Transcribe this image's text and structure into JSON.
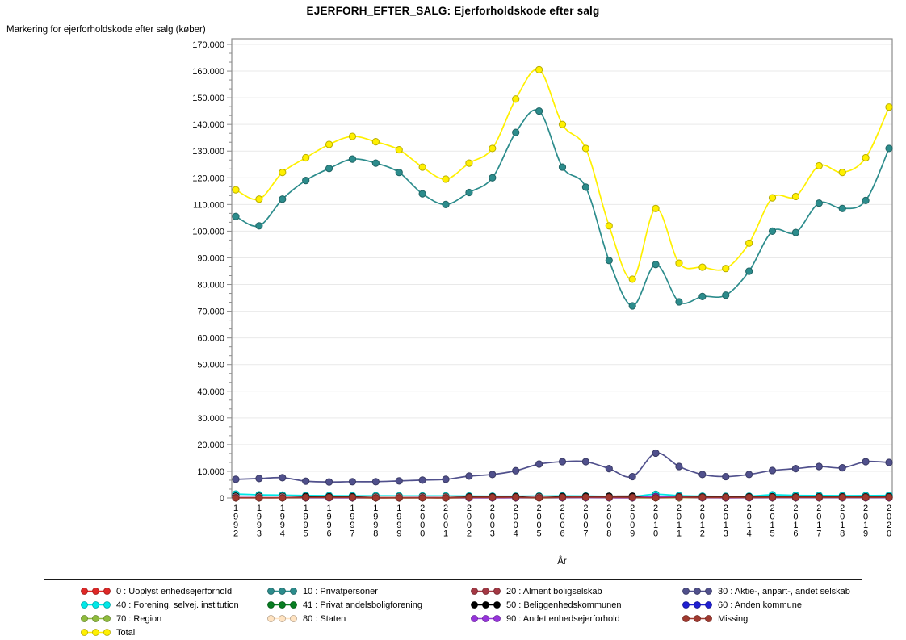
{
  "title": "EJERFORH_EFTER_SALG: Ejerforholdskode efter salg",
  "y_axis_label": "Markering for ejerforholdskode efter salg (køber)",
  "x_axis_label": "År",
  "chart_data": {
    "type": "line",
    "x": [
      1992,
      1993,
      1994,
      1995,
      1996,
      1997,
      1998,
      1999,
      2000,
      2001,
      2002,
      2003,
      2004,
      2005,
      2006,
      2007,
      2008,
      2009,
      2010,
      2011,
      2012,
      2013,
      2014,
      2015,
      2016,
      2017,
      2018,
      2019,
      2020
    ],
    "ylim": [
      0,
      170000
    ],
    "ytick_step": 10000,
    "y_minor_divisions": 3,
    "grid": true,
    "legend_position": "bottom",
    "legend_columns": 4,
    "series": [
      {
        "id": "s0",
        "label": "0 : Uoplyst enhedsejerforhold",
        "color": "#DF2827",
        "values": [
          120,
          110,
          100,
          90,
          90,
          80,
          80,
          80,
          90,
          80,
          80,
          80,
          90,
          90,
          100,
          100,
          90,
          80,
          120,
          90,
          80,
          80,
          80,
          90,
          90,
          90,
          90,
          90,
          100
        ]
      },
      {
        "id": "s10",
        "label": "10 : Privatpersoner",
        "color": "#2C8C8C",
        "values": [
          105500,
          102000,
          112000,
          119000,
          123500,
          127000,
          125500,
          122000,
          114000,
          110000,
          114500,
          120000,
          137000,
          145000,
          124000,
          116500,
          89000,
          72000,
          87500,
          73500,
          75500,
          76000,
          85000,
          100000,
          99500,
          110500,
          108500,
          111500,
          131000
        ]
      },
      {
        "id": "s20",
        "label": "20 : Alment boligselskab",
        "color": "#A43844",
        "values": [
          400,
          380,
          360,
          340,
          330,
          320,
          320,
          330,
          340,
          350,
          360,
          370,
          380,
          400,
          420,
          430,
          400,
          350,
          500,
          450,
          400,
          380,
          400,
          420,
          430,
          450,
          440,
          460,
          470
        ]
      },
      {
        "id": "s30",
        "label": "30 : Aktie-, anpart-, andet selskab",
        "color": "#50508C",
        "values": [
          7000,
          7300,
          7600,
          6300,
          6000,
          6100,
          6100,
          6400,
          6700,
          7000,
          8200,
          8800,
          10200,
          12700,
          13600,
          13600,
          11000,
          8000,
          16800,
          11800,
          8800,
          8000,
          8800,
          10300,
          11000,
          11800,
          11300,
          13600,
          13300
        ]
      },
      {
        "id": "s40",
        "label": "40 : Forening, selvej. institution",
        "color": "#00E8E8",
        "values": [
          1500,
          1200,
          1100,
          950,
          900,
          850,
          850,
          800,
          800,
          800,
          750,
          700,
          700,
          750,
          800,
          750,
          650,
          600,
          1400,
          900,
          700,
          650,
          700,
          1200,
          1000,
          950,
          900,
          950,
          1000
        ]
      },
      {
        "id": "s41",
        "label": "41 : Privat andelsboligforening",
        "color": "#077D21",
        "values": [
          500,
          480,
          450,
          420,
          400,
          380,
          370,
          360,
          360,
          350,
          350,
          340,
          350,
          360,
          370,
          380,
          360,
          300,
          400,
          350,
          320,
          300,
          310,
          330,
          340,
          350,
          340,
          350,
          360
        ]
      },
      {
        "id": "s50",
        "label": "50 : Beliggenhedskommunen",
        "color": "#000000",
        "values": [
          700,
          650,
          600,
          550,
          500,
          450,
          450,
          450,
          500,
          450,
          450,
          450,
          500,
          550,
          550,
          600,
          650,
          700,
          550,
          450,
          400,
          400,
          450,
          500,
          450,
          450,
          450,
          450,
          500
        ]
      },
      {
        "id": "s60",
        "label": "60 : Anden kommune",
        "color": "#1F1FD1",
        "values": [
          200,
          190,
          180,
          170,
          160,
          150,
          150,
          150,
          160,
          150,
          150,
          150,
          160,
          170,
          170,
          180,
          170,
          150,
          200,
          170,
          150,
          140,
          150,
          160,
          160,
          170,
          160,
          170,
          180
        ]
      },
      {
        "id": "s70",
        "label": "70 : Region",
        "color": "#8FBC3D",
        "values": [
          100,
          90,
          90,
          80,
          80,
          70,
          70,
          70,
          80,
          70,
          70,
          70,
          80,
          80,
          80,
          90,
          80,
          70,
          100,
          80,
          70,
          70,
          70,
          80,
          80,
          80,
          80,
          80,
          90
        ]
      },
      {
        "id": "s80",
        "label": "80 : Staten",
        "color": "#FFE3C1",
        "values": [
          350,
          340,
          330,
          200,
          180,
          170,
          300,
          310,
          320,
          300,
          180,
          170,
          160,
          300,
          170,
          160,
          150,
          140,
          350,
          150,
          140,
          130,
          140,
          150,
          150,
          160,
          150,
          160,
          170
        ]
      },
      {
        "id": "s90",
        "label": "90 : Andet enhedsejerforhold",
        "color": "#9634DB",
        "values": [
          150,
          140,
          130,
          120,
          110,
          100,
          100,
          100,
          110,
          100,
          100,
          100,
          110,
          120,
          130,
          140,
          130,
          110,
          500,
          300,
          150,
          120,
          130,
          140,
          140,
          150,
          140,
          150,
          160
        ]
      },
      {
        "id": "sMissing",
        "label": "Missing",
        "color": "#A0392F",
        "values": [
          50,
          50,
          50,
          200,
          220,
          230,
          60,
          60,
          60,
          60,
          250,
          260,
          270,
          80,
          280,
          290,
          280,
          250,
          80,
          260,
          250,
          240,
          250,
          260,
          260,
          270,
          260,
          270,
          280
        ]
      },
      {
        "id": "sTotal",
        "label": "Total",
        "color": "#FFF000",
        "values": [
          115500,
          112000,
          122000,
          127500,
          132500,
          135500,
          133500,
          130500,
          124000,
          119500,
          125500,
          131000,
          149500,
          160500,
          140000,
          131000,
          102000,
          82000,
          108500,
          88000,
          86500,
          86000,
          95500,
          112500,
          113000,
          124500,
          122000,
          127500,
          146500
        ]
      }
    ]
  },
  "style": {
    "grid_color": "#E9E9E9",
    "axis_color": "#8C8C8C",
    "text_color": "#000000",
    "background": "#FFFFFF"
  }
}
